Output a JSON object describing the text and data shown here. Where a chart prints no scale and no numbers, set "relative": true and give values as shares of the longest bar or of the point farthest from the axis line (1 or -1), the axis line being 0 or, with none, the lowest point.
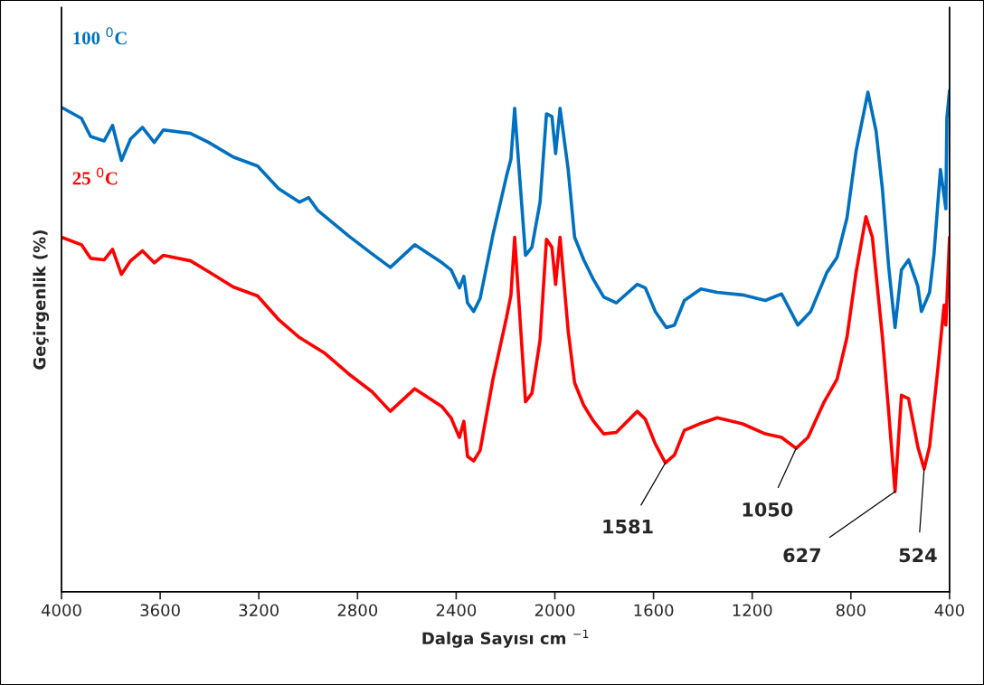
{
  "chart_data": {
    "type": "line",
    "relative": true,
    "xlabel": "Dalga Sayısı cm $^{−1}$",
    "ylabel": "Geçirgenlik (%)",
    "xlim": [
      4000,
      400
    ],
    "xticks": [
      4000,
      3600,
      3200,
      2800,
      2400,
      2000,
      1600,
      1200,
      800,
      400
    ],
    "grid": false,
    "legend": false,
    "marker": "none",
    "line_style": "solid",
    "series": [
      {
        "name": "100 $^{0}$C",
        "color": "#0070c0",
        "x": [
          4000,
          3919,
          3882,
          3827,
          3793,
          3757,
          3720,
          3672,
          3624,
          3587,
          3477,
          3403,
          3304,
          3205,
          3120,
          3035,
          2998,
          2962,
          2837,
          2741,
          2667,
          2568,
          2457,
          2421,
          2387,
          2369,
          2354,
          2329,
          2303,
          2251,
          2196,
          2178,
          2163,
          2145,
          2119,
          2093,
          2060,
          2034,
          2012,
          1997,
          1979,
          1946,
          1920,
          1883,
          1843,
          1802,
          1751,
          1666,
          1633,
          1593,
          1548,
          1515,
          1475,
          1408,
          1342,
          1239,
          1147,
          1081,
          1015,
          963,
          897,
          856,
          816,
          779,
          731,
          698,
          672,
          647,
          621,
          595,
          566,
          529,
          514,
          481,
          463,
          437,
          415,
          411,
          400
        ],
        "values": [
          0.966,
          0.944,
          0.908,
          0.899,
          0.93,
          0.86,
          0.903,
          0.926,
          0.896,
          0.921,
          0.914,
          0.896,
          0.867,
          0.849,
          0.804,
          0.777,
          0.786,
          0.761,
          0.71,
          0.674,
          0.647,
          0.692,
          0.656,
          0.642,
          0.606,
          0.629,
          0.576,
          0.559,
          0.585,
          0.712,
          0.829,
          0.863,
          0.964,
          0.842,
          0.671,
          0.687,
          0.777,
          0.953,
          0.948,
          0.874,
          0.964,
          0.842,
          0.707,
          0.662,
          0.622,
          0.588,
          0.576,
          0.613,
          0.606,
          0.559,
          0.527,
          0.532,
          0.581,
          0.604,
          0.597,
          0.592,
          0.581,
          0.594,
          0.532,
          0.559,
          0.637,
          0.667,
          0.745,
          0.879,
          0.996,
          0.919,
          0.802,
          0.649,
          0.527,
          0.642,
          0.662,
          0.61,
          0.559,
          0.597,
          0.674,
          0.842,
          0.764,
          0.944,
          1
        ]
      },
      {
        "name": "25 $^{0}$C",
        "color": "#ff0000",
        "x": [
          4000,
          3919,
          3882,
          3827,
          3793,
          3757,
          3720,
          3672,
          3624,
          3587,
          3477,
          3403,
          3304,
          3205,
          3120,
          3035,
          2936,
          2837,
          2741,
          2667,
          2568,
          2457,
          2421,
          2387,
          2369,
          2354,
          2329,
          2303,
          2251,
          2196,
          2178,
          2163,
          2145,
          2119,
          2093,
          2060,
          2034,
          2012,
          1997,
          1979,
          1946,
          1920,
          1883,
          1843,
          1802,
          1751,
          1666,
          1633,
          1593,
          1552,
          1515,
          1475,
          1408,
          1342,
          1239,
          1147,
          1081,
          1022,
          974,
          908,
          856,
          816,
          779,
          739,
          713,
          672,
          647,
          621,
          595,
          566,
          529,
          503,
          481,
          448,
          422,
          415,
          400
        ],
        "values": [
          0.707,
          0.692,
          0.665,
          0.662,
          0.683,
          0.633,
          0.66,
          0.68,
          0.656,
          0.671,
          0.66,
          0.638,
          0.608,
          0.59,
          0.543,
          0.507,
          0.477,
          0.435,
          0.399,
          0.36,
          0.405,
          0.369,
          0.347,
          0.308,
          0.34,
          0.27,
          0.261,
          0.282,
          0.424,
          0.547,
          0.592,
          0.707,
          0.572,
          0.379,
          0.396,
          0.502,
          0.703,
          0.687,
          0.613,
          0.707,
          0.52,
          0.417,
          0.372,
          0.34,
          0.315,
          0.318,
          0.36,
          0.344,
          0.295,
          0.257,
          0.273,
          0.322,
          0.336,
          0.347,
          0.335,
          0.315,
          0.308,
          0.286,
          0.308,
          0.379,
          0.424,
          0.507,
          0.637,
          0.748,
          0.707,
          0.507,
          0.36,
          0.2,
          0.392,
          0.385,
          0.29,
          0.245,
          0.29,
          0.442,
          0.572,
          0.532,
          0.707
        ]
      }
    ],
    "annotations": [
      {
        "text": "1581",
        "x": 1552,
        "y": 0.257
      },
      {
        "text": "1050",
        "x": 1022,
        "y": 0.286
      },
      {
        "text": "627",
        "x": 621,
        "y": 0.2
      },
      {
        "text": "524",
        "x": 503,
        "y": 0.245
      }
    ]
  }
}
